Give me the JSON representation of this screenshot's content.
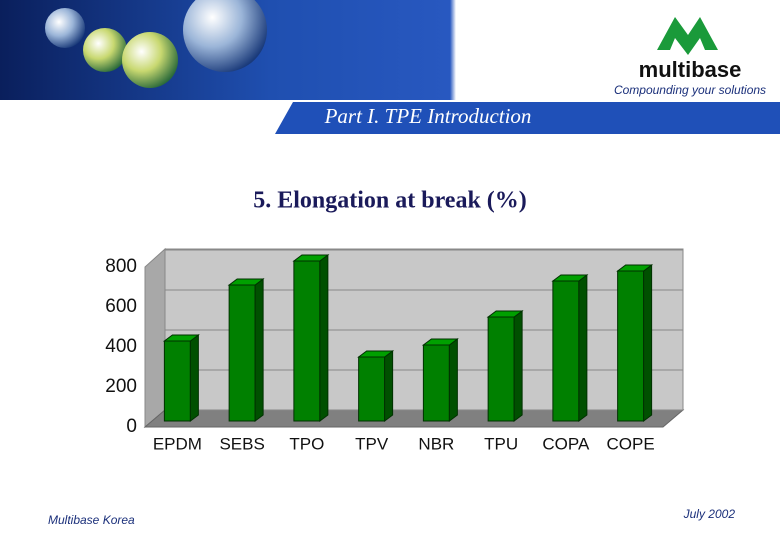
{
  "header": {
    "title": "Part I. TPE Introduction",
    "logo": "multibase",
    "tagline": "Compounding your solutions"
  },
  "chart_data": {
    "type": "bar",
    "title": "5. Elongation at break (%)",
    "categories": [
      "EPDM",
      "SEBS",
      "TPO",
      "TPV",
      "NBR",
      "TPU",
      "COPA",
      "COPE"
    ],
    "values": [
      400,
      680,
      800,
      320,
      380,
      520,
      700,
      750
    ],
    "color": "#008000",
    "ylim": [
      0,
      800
    ],
    "yticks": [
      0,
      200,
      400,
      600,
      800
    ],
    "grid": true
  },
  "footer": {
    "left": "Multibase Korea",
    "right": "July  2002"
  }
}
